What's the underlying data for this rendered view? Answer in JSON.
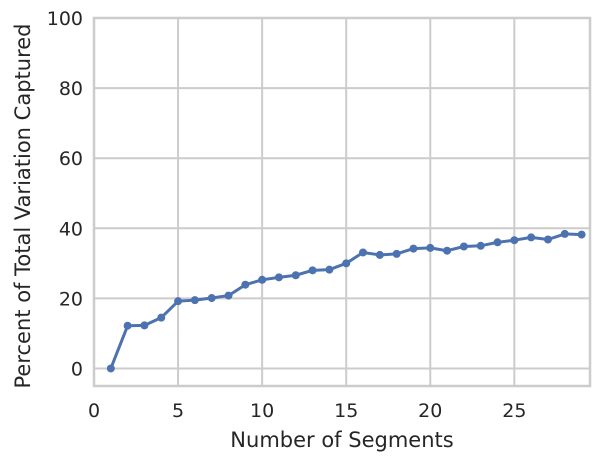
{
  "chart_data": {
    "type": "line",
    "title": "",
    "xlabel": "Number of Segments",
    "ylabel": "Percent of Total Variation Captured",
    "xlim": [
      0,
      29.5
    ],
    "ylim": [
      -5,
      100
    ],
    "xticks": [
      0,
      5,
      10,
      15,
      20,
      25
    ],
    "yticks": [
      0,
      20,
      40,
      60,
      80,
      100
    ],
    "grid": true,
    "legend": "none",
    "series": [
      {
        "color": "#4c72b0",
        "x": [
          1,
          2,
          3,
          4,
          5,
          6,
          7,
          8,
          9,
          10,
          11,
          12,
          13,
          14,
          15,
          16,
          17,
          18,
          19,
          20,
          21,
          22,
          23,
          24,
          25,
          26,
          27,
          28,
          29
        ],
        "y": [
          0,
          12.2,
          12.3,
          14.5,
          19.2,
          19.5,
          20.1,
          20.8,
          23.9,
          25.3,
          26,
          26.6,
          28,
          28.2,
          30,
          33.1,
          32.4,
          32.7,
          34.2,
          34.4,
          33.6,
          34.8,
          35,
          36,
          36.6,
          37.4,
          36.8,
          38.4,
          38.2
        ]
      }
    ]
  }
}
